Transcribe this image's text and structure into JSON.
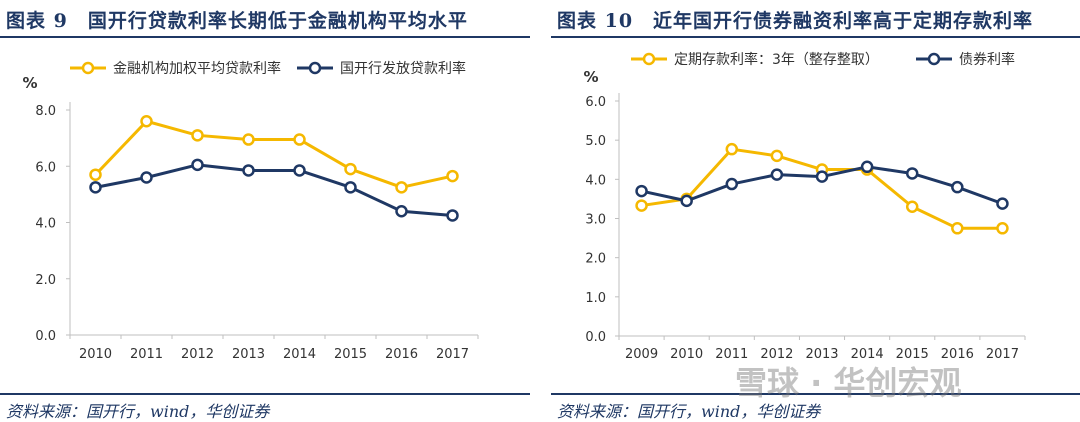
{
  "colors": {
    "gold": "#f5b800",
    "navy": "#1f3864",
    "axis": "#bfbfbf"
  },
  "watermark": "雪球 · 华创宏观",
  "chart_data": [
    {
      "type": "line",
      "title": "图表 9　国开行贷款利率长期低于金融机构平均水平",
      "ylabel": "%",
      "ylim": [
        0,
        8
      ],
      "yticks": [
        "0.0",
        "2.0",
        "4.0",
        "6.0",
        "8.0"
      ],
      "categories": [
        "2010",
        "2011",
        "2012",
        "2013",
        "2014",
        "2015",
        "2016",
        "2017"
      ],
      "series": [
        {
          "name": "金融机构加权平均贷款利率",
          "color": "#f5b800",
          "values": [
            5.7,
            7.6,
            7.1,
            6.95,
            6.95,
            5.9,
            5.25,
            5.65
          ]
        },
        {
          "name": "国开行发放贷款利率",
          "color": "#1f3864",
          "values": [
            5.25,
            5.6,
            6.05,
            5.85,
            5.85,
            5.25,
            4.4,
            4.25
          ]
        }
      ],
      "legend": "top",
      "source": "资料来源：国开行，wind，华创证券"
    },
    {
      "type": "line",
      "title": "图表 10　近年国开行债券融资利率高于定期存款利率",
      "ylabel": "%",
      "ylim": [
        0,
        6
      ],
      "yticks": [
        "0.0",
        "1.0",
        "2.0",
        "3.0",
        "4.0",
        "5.0",
        "6.0"
      ],
      "categories": [
        "2009",
        "2010",
        "2011",
        "2012",
        "2013",
        "2014",
        "2015",
        "2016",
        "2017"
      ],
      "series": [
        {
          "name": "定期存款利率：3年（整存整取）",
          "color": "#f5b800",
          "values": [
            3.33,
            3.5,
            4.77,
            4.6,
            4.25,
            4.25,
            3.3,
            2.75,
            2.75
          ]
        },
        {
          "name": "债券利率",
          "color": "#1f3864",
          "values": [
            3.7,
            3.45,
            3.88,
            4.12,
            4.07,
            4.32,
            4.15,
            3.8,
            3.38
          ]
        }
      ],
      "legend": "top",
      "source": "资料来源：国开行，wind，华创证券"
    }
  ]
}
